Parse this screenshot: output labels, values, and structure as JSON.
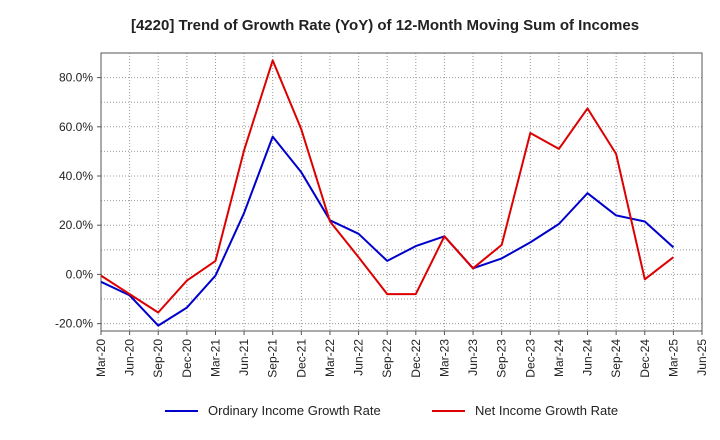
{
  "chart_data": {
    "type": "line",
    "title": "[4220]  Trend of Growth Rate (YoY) of 12-Month Moving Sum of Incomes",
    "xlabel": "",
    "ylabel": "",
    "y_unit": "%",
    "ylim": [
      -23,
      90
    ],
    "y_ticks": [
      -20,
      0,
      20,
      40,
      60,
      80
    ],
    "y_tick_labels": [
      "-20.0%",
      "0.0%",
      "20.0%",
      "40.0%",
      "60.0%",
      "80.0%"
    ],
    "x": [
      "Mar-20",
      "Jun-20",
      "Sep-20",
      "Dec-20",
      "Mar-21",
      "Jun-21",
      "Sep-21",
      "Dec-21",
      "Mar-22",
      "Jun-22",
      "Sep-22",
      "Dec-22",
      "Mar-23",
      "Jun-23",
      "Sep-23",
      "Dec-23",
      "Mar-24",
      "Jun-24",
      "Sep-24",
      "Dec-24",
      "Mar-25",
      "Jun-25"
    ],
    "grid": true,
    "legend_position": "bottom",
    "series": [
      {
        "name": "Ordinary Income Growth Rate",
        "color": "#0000cc",
        "values": [
          -3.0,
          -8.5,
          -20.8,
          -13.5,
          -0.5,
          25.0,
          56.0,
          41.5,
          22.0,
          16.5,
          5.5,
          11.5,
          15.5,
          2.5,
          6.5,
          13.0,
          20.5,
          33.0,
          24.0,
          21.5,
          11.0,
          null
        ]
      },
      {
        "name": "Net Income Growth Rate",
        "color": "#dd0000",
        "values": [
          -0.5,
          -8.0,
          -15.5,
          -2.5,
          5.5,
          50.5,
          87.0,
          59.0,
          21.5,
          7.0,
          -8.0,
          -8.0,
          15.5,
          2.5,
          12.0,
          57.5,
          51.0,
          67.5,
          49.0,
          -2.0,
          7.0,
          null
        ]
      }
    ]
  }
}
